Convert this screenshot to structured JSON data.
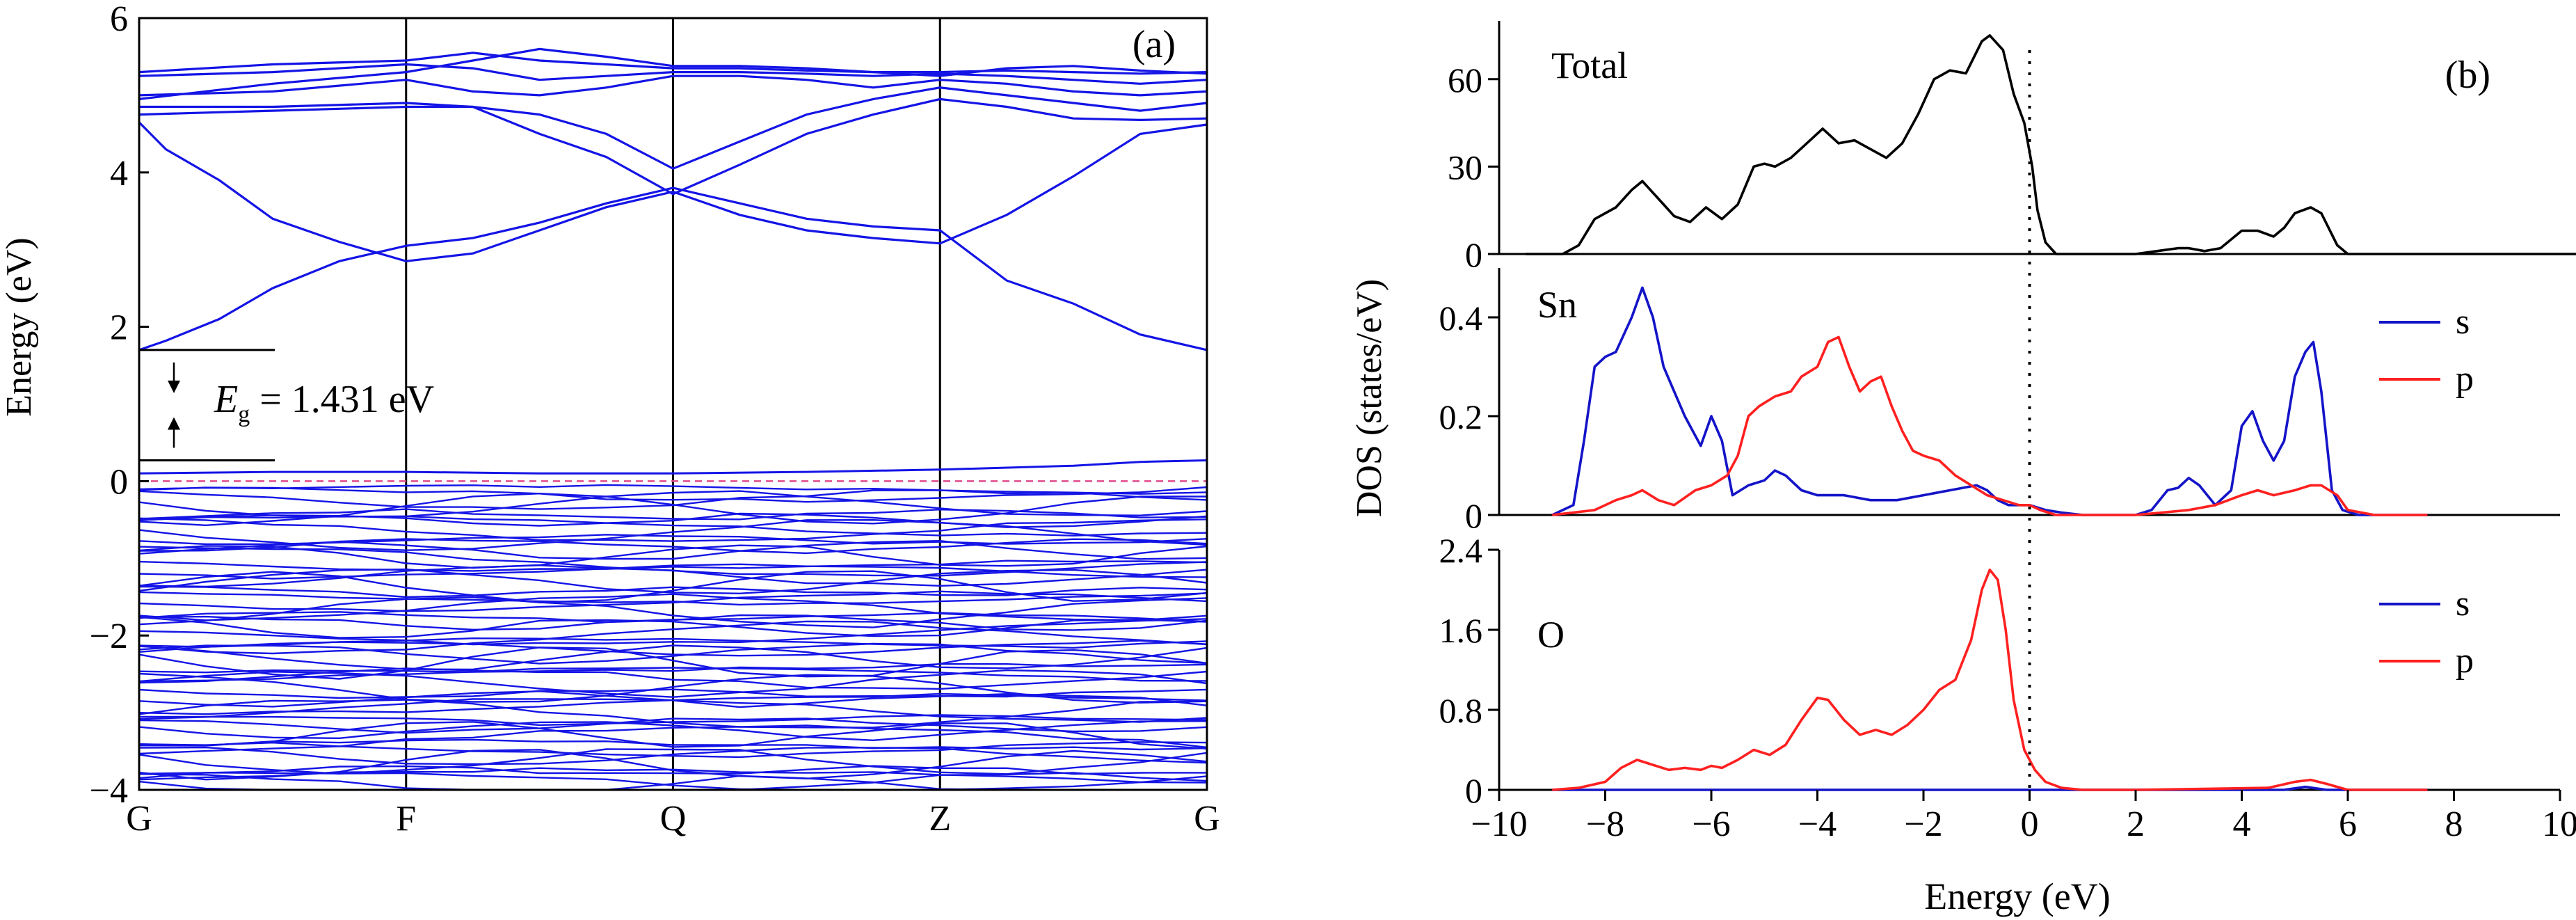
{
  "chart_data": [
    {
      "panel": "(a)",
      "type": "line",
      "ylabel": "Energy (eV)",
      "ylim": [
        -4,
        6
      ],
      "yticks": [
        "6",
        "4",
        "2",
        "0",
        "−2",
        "−4"
      ],
      "ytick_values": [
        6,
        4,
        2,
        0,
        -2,
        -4
      ],
      "kpoint_labels": [
        "G",
        "F",
        "Q",
        "Z",
        "G"
      ],
      "kpoint_positions": [
        0,
        1,
        2,
        3,
        4
      ],
      "gap_label": {
        "symbol": "E",
        "subscript": "g",
        "text": " = 1.431 eV"
      },
      "gap_ev": 1.431,
      "vbm": 0.27,
      "cbm": 1.7,
      "fermi_level": 0,
      "line_color": "#1414e6",
      "fermi_color": "#e04a8a",
      "conduction_bands": [
        {
          "x": [
            0,
            0.1,
            0.3,
            0.5,
            0.75,
            1,
            1.25,
            1.5,
            1.75,
            2,
            2.25,
            2.5,
            2.75,
            3,
            3.25,
            3.5,
            3.75,
            4
          ],
          "y": [
            1.7,
            1.82,
            2.1,
            2.5,
            2.85,
            3.05,
            3.15,
            3.35,
            3.6,
            3.8,
            3.6,
            3.4,
            3.3,
            3.25,
            2.6,
            2.3,
            1.9,
            1.7
          ]
        },
        {
          "x": [
            0,
            0.1,
            0.3,
            0.5,
            0.75,
            1,
            1.25,
            1.5,
            1.75,
            2,
            2.25,
            2.5,
            2.75,
            3,
            3.25,
            3.5,
            3.75,
            4
          ],
          "y": [
            4.65,
            4.3,
            3.9,
            3.4,
            3.1,
            2.85,
            2.95,
            3.25,
            3.55,
            3.75,
            3.45,
            3.25,
            3.15,
            3.08,
            3.45,
            3.95,
            4.5,
            4.62
          ]
        },
        {
          "x": [
            0,
            0.5,
            1,
            1.25,
            1.5,
            1.75,
            2,
            2.25,
            2.5,
            2.75,
            3,
            3.25,
            3.5,
            3.75,
            4
          ],
          "y": [
            4.75,
            4.8,
            4.85,
            4.85,
            4.5,
            4.2,
            3.72,
            4.1,
            4.5,
            4.75,
            4.95,
            4.85,
            4.7,
            4.68,
            4.7
          ]
        },
        {
          "x": [
            0,
            0.5,
            1,
            1.25,
            1.5,
            1.75,
            2,
            2.25,
            2.5,
            2.75,
            3,
            3.25,
            3.5,
            3.75,
            4
          ],
          "y": [
            4.85,
            4.85,
            4.9,
            4.85,
            4.75,
            4.5,
            4.05,
            4.4,
            4.75,
            4.95,
            5.1,
            5.0,
            4.9,
            4.8,
            4.9
          ]
        },
        {
          "x": [
            0,
            0.5,
            1,
            1.25,
            1.5,
            1.75,
            2,
            2.25,
            2.5,
            2.75,
            3,
            3.25,
            3.5,
            3.75,
            4
          ],
          "y": [
            5.0,
            5.05,
            5.2,
            5.05,
            5.0,
            5.1,
            5.25,
            5.25,
            5.2,
            5.1,
            5.2,
            5.15,
            5.05,
            5.0,
            5.05
          ]
        },
        {
          "x": [
            0,
            0.5,
            1,
            1.25,
            1.5,
            1.75,
            2,
            2.25,
            2.5,
            2.75,
            3,
            3.25,
            3.5,
            3.75,
            4
          ],
          "y": [
            5.25,
            5.3,
            5.4,
            5.35,
            5.2,
            5.25,
            5.3,
            5.3,
            5.28,
            5.25,
            5.28,
            5.25,
            5.2,
            5.15,
            5.2
          ]
        },
        {
          "x": [
            0,
            0.5,
            1,
            1.25,
            1.5,
            1.75,
            2,
            2.25,
            2.5,
            2.75,
            3,
            3.25,
            3.5,
            3.75,
            4
          ],
          "y": [
            5.3,
            5.4,
            5.45,
            5.55,
            5.45,
            5.4,
            5.35,
            5.35,
            5.32,
            5.3,
            5.3,
            5.32,
            5.3,
            5.28,
            5.3
          ]
        },
        {
          "x": [
            0,
            0.5,
            1,
            1.25,
            1.5,
            1.75,
            2,
            2.25,
            2.5,
            2.75,
            3,
            3.25,
            3.5,
            3.75,
            4
          ],
          "y": [
            4.95,
            5.15,
            5.3,
            5.45,
            5.6,
            5.5,
            5.38,
            5.38,
            5.35,
            5.3,
            5.25,
            5.35,
            5.38,
            5.32,
            5.28
          ]
        }
      ],
      "valence_top": {
        "x": [
          0,
          0.5,
          1,
          1.5,
          2,
          2.5,
          3,
          3.5,
          3.75,
          4
        ],
        "y": [
          0.1,
          0.12,
          0.12,
          0.1,
          0.1,
          0.12,
          0.15,
          0.2,
          0.25,
          0.27
        ]
      },
      "valence_band_count": 60,
      "valence_band_range": [
        -4,
        0
      ]
    },
    {
      "panel": "(b)",
      "type": "line",
      "xlabel": "Energy (eV)",
      "ylabel": "DOS (states/eV)",
      "xlim": [
        -10,
        10
      ],
      "xticks": [
        "−10",
        "−8",
        "−6",
        "−4",
        "−2",
        "0",
        "2",
        "4",
        "6",
        "8",
        "10"
      ],
      "xtick_values": [
        -10,
        -8,
        -6,
        -4,
        -2,
        0,
        2,
        4,
        6,
        8,
        10
      ],
      "fermi_level": 0,
      "subplots": [
        {
          "label": "Total",
          "ylim": [
            0,
            80
          ],
          "yticks": [
            "0",
            "30",
            "60"
          ],
          "ytick_values": [
            0,
            30,
            60
          ],
          "series": [
            {
              "color": "#000000",
              "x": [
                -9.5,
                -8.8,
                -8.5,
                -8.2,
                -7.8,
                -7.5,
                -7.3,
                -7.0,
                -6.7,
                -6.4,
                -6.1,
                -5.8,
                -5.5,
                -5.2,
                -5.0,
                -4.8,
                -4.5,
                -4.2,
                -3.9,
                -3.6,
                -3.3,
                -3.0,
                -2.7,
                -2.4,
                -2.1,
                -1.8,
                -1.5,
                -1.2,
                -0.9,
                -0.75,
                -0.5,
                -0.3,
                -0.1,
                0.05,
                0.15,
                0.3,
                0.5,
                1.0,
                2.0,
                2.4,
                2.8,
                3.0,
                3.3,
                3.6,
                4.0,
                4.3,
                4.6,
                4.8,
                5.0,
                5.3,
                5.5,
                5.8,
                6.0,
                7.0,
                12.0
              ],
              "y": [
                0,
                0,
                3,
                12,
                16,
                22,
                25,
                19,
                13,
                11,
                16,
                12,
                17,
                30,
                31,
                30,
                33,
                38,
                43,
                38,
                39,
                36,
                33,
                38,
                48,
                60,
                63,
                62,
                73,
                75,
                70,
                55,
                45,
                30,
                15,
                4,
                0,
                0,
                0,
                1,
                2,
                2,
                1,
                2,
                8,
                8,
                6,
                9,
                14,
                16,
                14,
                3,
                0,
                0,
                0
              ]
            }
          ]
        },
        {
          "label": "Sn",
          "ylim": [
            0,
            0.5
          ],
          "yticks": [
            "0",
            "0.2",
            "0.4"
          ],
          "ytick_values": [
            0,
            0.2,
            0.4
          ],
          "legend": [
            "s",
            "p"
          ],
          "legend_placement": "right",
          "series": [
            {
              "name": "s",
              "color": "#1414c8",
              "x": [
                -9.0,
                -8.6,
                -8.4,
                -8.2,
                -8.0,
                -7.8,
                -7.5,
                -7.3,
                -7.1,
                -6.9,
                -6.7,
                -6.5,
                -6.2,
                -6.0,
                -5.8,
                -5.6,
                -5.3,
                -5.0,
                -4.8,
                -4.6,
                -4.3,
                -4.0,
                -3.5,
                -3.0,
                -2.5,
                -2.0,
                -1.5,
                -1.0,
                -0.8,
                -0.6,
                -0.4,
                -0.2,
                0.0,
                0.3,
                0.6,
                1.0,
                2.0,
                2.3,
                2.6,
                2.8,
                3.0,
                3.2,
                3.5,
                3.8,
                4.0,
                4.2,
                4.4,
                4.6,
                4.8,
                5.0,
                5.2,
                5.35,
                5.5,
                5.7,
                5.9,
                6.2,
                7.5
              ],
              "y": [
                0,
                0.02,
                0.15,
                0.3,
                0.32,
                0.33,
                0.4,
                0.46,
                0.4,
                0.3,
                0.25,
                0.2,
                0.14,
                0.2,
                0.15,
                0.04,
                0.06,
                0.07,
                0.09,
                0.08,
                0.05,
                0.04,
                0.04,
                0.03,
                0.03,
                0.04,
                0.05,
                0.06,
                0.05,
                0.03,
                0.02,
                0.02,
                0.02,
                0.01,
                0.005,
                0,
                0,
                0.01,
                0.05,
                0.055,
                0.075,
                0.06,
                0.02,
                0.05,
                0.18,
                0.21,
                0.15,
                0.11,
                0.15,
                0.28,
                0.33,
                0.35,
                0.25,
                0.05,
                0.01,
                0,
                0
              ]
            },
            {
              "name": "p",
              "color": "#ff2020",
              "x": [
                -9.0,
                -8.2,
                -7.8,
                -7.5,
                -7.3,
                -7.0,
                -6.7,
                -6.3,
                -6.0,
                -5.7,
                -5.5,
                -5.3,
                -5.1,
                -4.8,
                -4.5,
                -4.3,
                -4.0,
                -3.8,
                -3.6,
                -3.4,
                -3.2,
                -3.0,
                -2.8,
                -2.6,
                -2.4,
                -2.2,
                -2.0,
                -1.7,
                -1.4,
                -1.1,
                -0.8,
                -0.5,
                -0.2,
                0.0,
                0.2,
                0.5,
                1.0,
                2.0,
                2.5,
                3.0,
                3.5,
                4.0,
                4.3,
                4.6,
                5.0,
                5.3,
                5.5,
                5.8,
                6.0,
                6.5,
                7.5
              ],
              "y": [
                0,
                0.01,
                0.03,
                0.04,
                0.05,
                0.03,
                0.02,
                0.05,
                0.06,
                0.08,
                0.12,
                0.2,
                0.22,
                0.24,
                0.25,
                0.28,
                0.3,
                0.35,
                0.36,
                0.3,
                0.25,
                0.27,
                0.28,
                0.22,
                0.17,
                0.13,
                0.12,
                0.11,
                0.08,
                0.06,
                0.04,
                0.03,
                0.02,
                0.02,
                0.01,
                0,
                0,
                0,
                0.005,
                0.01,
                0.02,
                0.04,
                0.05,
                0.04,
                0.05,
                0.06,
                0.06,
                0.04,
                0.01,
                0,
                0
              ]
            }
          ]
        },
        {
          "label": "O",
          "ylim": [
            0,
            2.4
          ],
          "yticks": [
            "0",
            "0.8",
            "1.6",
            "2.4"
          ],
          "ytick_values": [
            0,
            0.8,
            1.6,
            2.4
          ],
          "legend": [
            "s",
            "p"
          ],
          "legend_placement": "right",
          "series": [
            {
              "name": "s",
              "color": "#1414c8",
              "x": [
                -9.0,
                4.8,
                5.2,
                5.6,
                7.5
              ],
              "y": [
                0,
                0,
                0.03,
                0,
                0
              ]
            },
            {
              "name": "p",
              "color": "#ff2020",
              "x": [
                -9.0,
                -8.5,
                -8.0,
                -7.7,
                -7.4,
                -7.1,
                -6.8,
                -6.5,
                -6.2,
                -6.0,
                -5.8,
                -5.5,
                -5.2,
                -4.9,
                -4.6,
                -4.3,
                -4.0,
                -3.8,
                -3.5,
                -3.2,
                -2.9,
                -2.6,
                -2.3,
                -2.0,
                -1.7,
                -1.4,
                -1.1,
                -0.9,
                -0.75,
                -0.6,
                -0.45,
                -0.3,
                -0.1,
                0.1,
                0.3,
                0.6,
                1.0,
                2.0,
                4.5,
                5.0,
                5.3,
                5.6,
                6.0,
                7.5
              ],
              "y": [
                0,
                0.02,
                0.08,
                0.22,
                0.3,
                0.25,
                0.2,
                0.22,
                0.2,
                0.24,
                0.22,
                0.3,
                0.4,
                0.35,
                0.45,
                0.7,
                0.92,
                0.9,
                0.7,
                0.55,
                0.6,
                0.55,
                0.65,
                0.8,
                1.0,
                1.1,
                1.5,
                2.0,
                2.2,
                2.1,
                1.6,
                0.9,
                0.4,
                0.2,
                0.08,
                0.02,
                0,
                0,
                0.02,
                0.08,
                0.1,
                0.06,
                0,
                0
              ]
            }
          ]
        }
      ]
    }
  ]
}
